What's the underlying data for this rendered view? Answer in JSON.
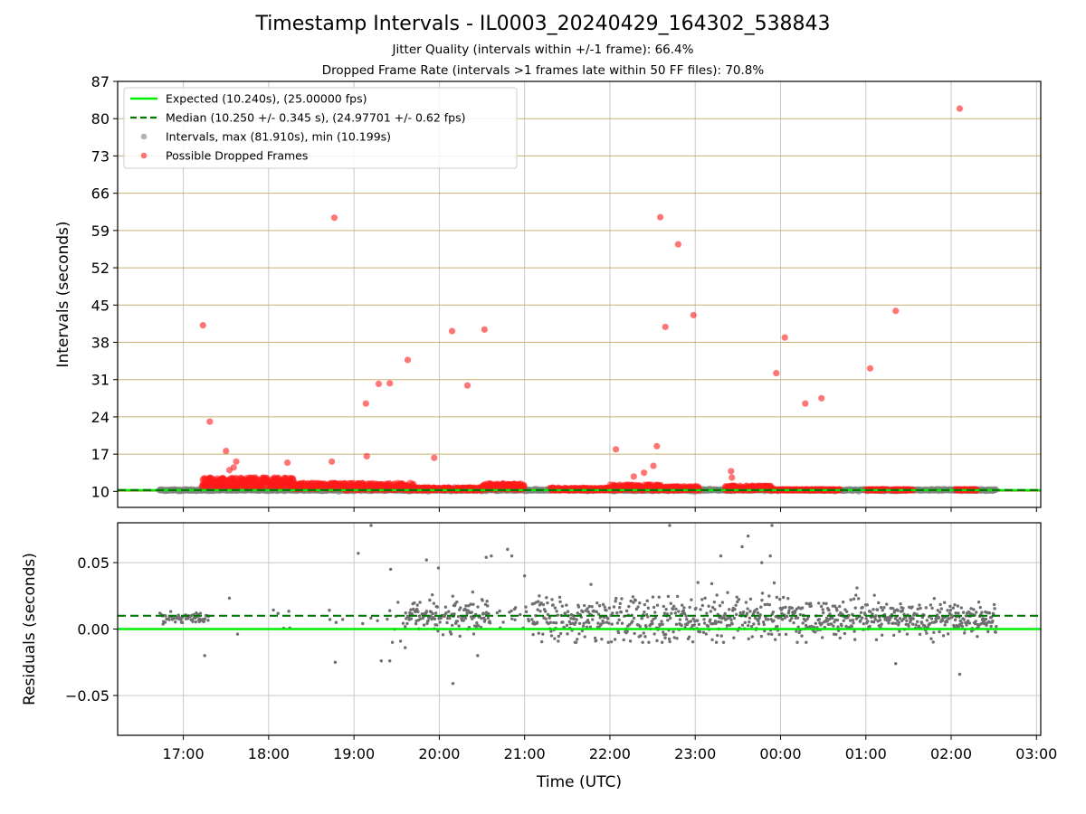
{
  "title": "Timestamp Intervals - IL0003_20240429_164302_538843",
  "subtitle_1": "Jitter Quality (intervals within +/-1 frame): 66.4%",
  "subtitle_2": "Dropped Frame Rate (intervals >1 frames late within 50 FF files): 70.8%",
  "colors": {
    "expected": "#00ee00",
    "median": "#007700",
    "intervals": "#7f7f7f",
    "dropped": "#ff1a1a",
    "hgrid_top": "#c8b070",
    "grid": "#c8c8c8"
  },
  "chart_data": [
    {
      "type": "scatter",
      "panel": "top",
      "ylabel": "Intervals (seconds)",
      "ylim": [
        7,
        87
      ],
      "yticks": [
        "10",
        "17",
        "24",
        "31",
        "38",
        "45",
        "52",
        "59",
        "66",
        "73",
        "80",
        "87"
      ],
      "xlim": [
        16.23,
        27.05
      ],
      "xticks_hours": [
        17,
        18,
        19,
        20,
        21,
        22,
        23,
        24,
        25,
        26,
        27
      ],
      "legend_placement": "top-left",
      "legend": [
        "Expected (10.240s), (25.00000 fps)",
        "Median (10.250 +/- 0.345 s), (24.97701 +/- 0.62 fps)",
        "Intervals, max (81.910s), min (10.199s)",
        "Possible Dropped Frames"
      ],
      "expected_y": 10.24,
      "median_y": 10.25,
      "interval_range_x": [
        16.72,
        26.53
      ],
      "dropped_outliers": [
        [
          17.23,
          41.2
        ],
        [
          17.31,
          23.1
        ],
        [
          17.5,
          17.6
        ],
        [
          17.54,
          14.0
        ],
        [
          17.59,
          14.5
        ],
        [
          17.62,
          15.6
        ],
        [
          18.22,
          15.4
        ],
        [
          18.74,
          15.6
        ],
        [
          18.77,
          61.4
        ],
        [
          19.14,
          26.5
        ],
        [
          19.15,
          16.6
        ],
        [
          19.29,
          30.2
        ],
        [
          19.42,
          30.3
        ],
        [
          19.63,
          34.7
        ],
        [
          19.94,
          16.3
        ],
        [
          20.15,
          40.1
        ],
        [
          20.33,
          29.9
        ],
        [
          20.53,
          40.4
        ],
        [
          22.07,
          17.9
        ],
        [
          22.28,
          12.8
        ],
        [
          22.4,
          13.5
        ],
        [
          22.51,
          14.8
        ],
        [
          22.55,
          18.5
        ],
        [
          22.59,
          61.5
        ],
        [
          22.65,
          40.9
        ],
        [
          22.8,
          56.4
        ],
        [
          22.98,
          43.1
        ],
        [
          23.42,
          13.8
        ],
        [
          23.43,
          12.6
        ],
        [
          23.95,
          32.2
        ],
        [
          24.05,
          38.9
        ],
        [
          24.29,
          26.5
        ],
        [
          24.48,
          27.5
        ],
        [
          25.05,
          33.1
        ],
        [
          25.35,
          43.9
        ],
        [
          26.1,
          81.9
        ]
      ],
      "dropped_cluster_segments": [
        [
          17.22,
          18.3,
          11.6,
          1.0
        ],
        [
          18.3,
          18.9,
          11.0,
          0.6
        ],
        [
          18.9,
          19.7,
          10.9,
          0.7
        ],
        [
          19.7,
          20.5,
          10.45,
          0.3
        ],
        [
          20.5,
          21.0,
          10.9,
          0.6
        ],
        [
          21.3,
          22.0,
          10.4,
          0.3
        ],
        [
          22.0,
          22.6,
          10.7,
          0.6
        ],
        [
          22.6,
          23.05,
          10.5,
          0.5
        ],
        [
          23.35,
          23.9,
          10.6,
          0.5
        ],
        [
          23.9,
          24.7,
          10.3,
          0.1
        ],
        [
          25.0,
          25.25,
          10.3,
          0.1
        ],
        [
          25.3,
          25.55,
          10.3,
          0.1
        ],
        [
          26.05,
          26.3,
          10.3,
          0.1
        ]
      ]
    },
    {
      "type": "scatter",
      "panel": "bottom",
      "xlabel": "Time (UTC)",
      "ylabel": "Residuals (seconds)",
      "ylim": [
        -0.08,
        0.08
      ],
      "yticks": [
        "0.05",
        "0.00",
        "−0.05"
      ],
      "ytick_values": [
        0.05,
        0.0,
        -0.05
      ],
      "xticks": [
        "17:00",
        "18:00",
        "19:00",
        "20:00",
        "21:00",
        "22:00",
        "23:00",
        "00:00",
        "01:00",
        "02:00",
        "03:00"
      ],
      "xticks_hours": [
        17,
        18,
        19,
        20,
        21,
        22,
        23,
        24,
        25,
        26,
        27
      ],
      "expected_y": 0.0,
      "median_y": 0.01,
      "residual_segments": [
        [
          16.72,
          17.3,
          0.008,
          0.002,
          0.5
        ],
        [
          17.3,
          18.7,
          0.008,
          0.01,
          0.02
        ],
        [
          18.7,
          19.6,
          0.008,
          0.008,
          0.12
        ],
        [
          19.6,
          20.6,
          0.009,
          0.006,
          0.9
        ],
        [
          20.6,
          21.1,
          0.008,
          0.008,
          0.2
        ],
        [
          21.1,
          22.6,
          0.008,
          0.009,
          0.9
        ],
        [
          22.6,
          23.5,
          0.009,
          0.01,
          0.9
        ],
        [
          23.5,
          24.5,
          0.008,
          0.009,
          0.9
        ],
        [
          24.5,
          26.53,
          0.008,
          0.006,
          1.0
        ]
      ],
      "residual_outliers": [
        [
          17.25,
          -0.02
        ],
        [
          18.78,
          -0.025
        ],
        [
          19.05,
          0.057
        ],
        [
          19.32,
          -0.024
        ],
        [
          19.42,
          -0.024
        ],
        [
          19.43,
          0.045
        ],
        [
          19.6,
          -0.014
        ],
        [
          19.85,
          0.052
        ],
        [
          19.99,
          0.046
        ],
        [
          20.16,
          -0.041
        ],
        [
          20.45,
          -0.02
        ],
        [
          20.55,
          0.054
        ],
        [
          20.61,
          0.055
        ],
        [
          20.8,
          0.06
        ],
        [
          20.85,
          0.055
        ],
        [
          21.0,
          0.04
        ],
        [
          23.3,
          0.055
        ],
        [
          23.55,
          0.062
        ],
        [
          23.62,
          0.07
        ],
        [
          23.78,
          0.05
        ],
        [
          23.88,
          0.055
        ],
        [
          24.3,
          -0.01
        ],
        [
          25.35,
          -0.026
        ],
        [
          26.1,
          -0.034
        ],
        [
          19.2,
          0.078
        ],
        [
          22.7,
          0.078
        ],
        [
          23.9,
          0.078
        ]
      ]
    }
  ]
}
